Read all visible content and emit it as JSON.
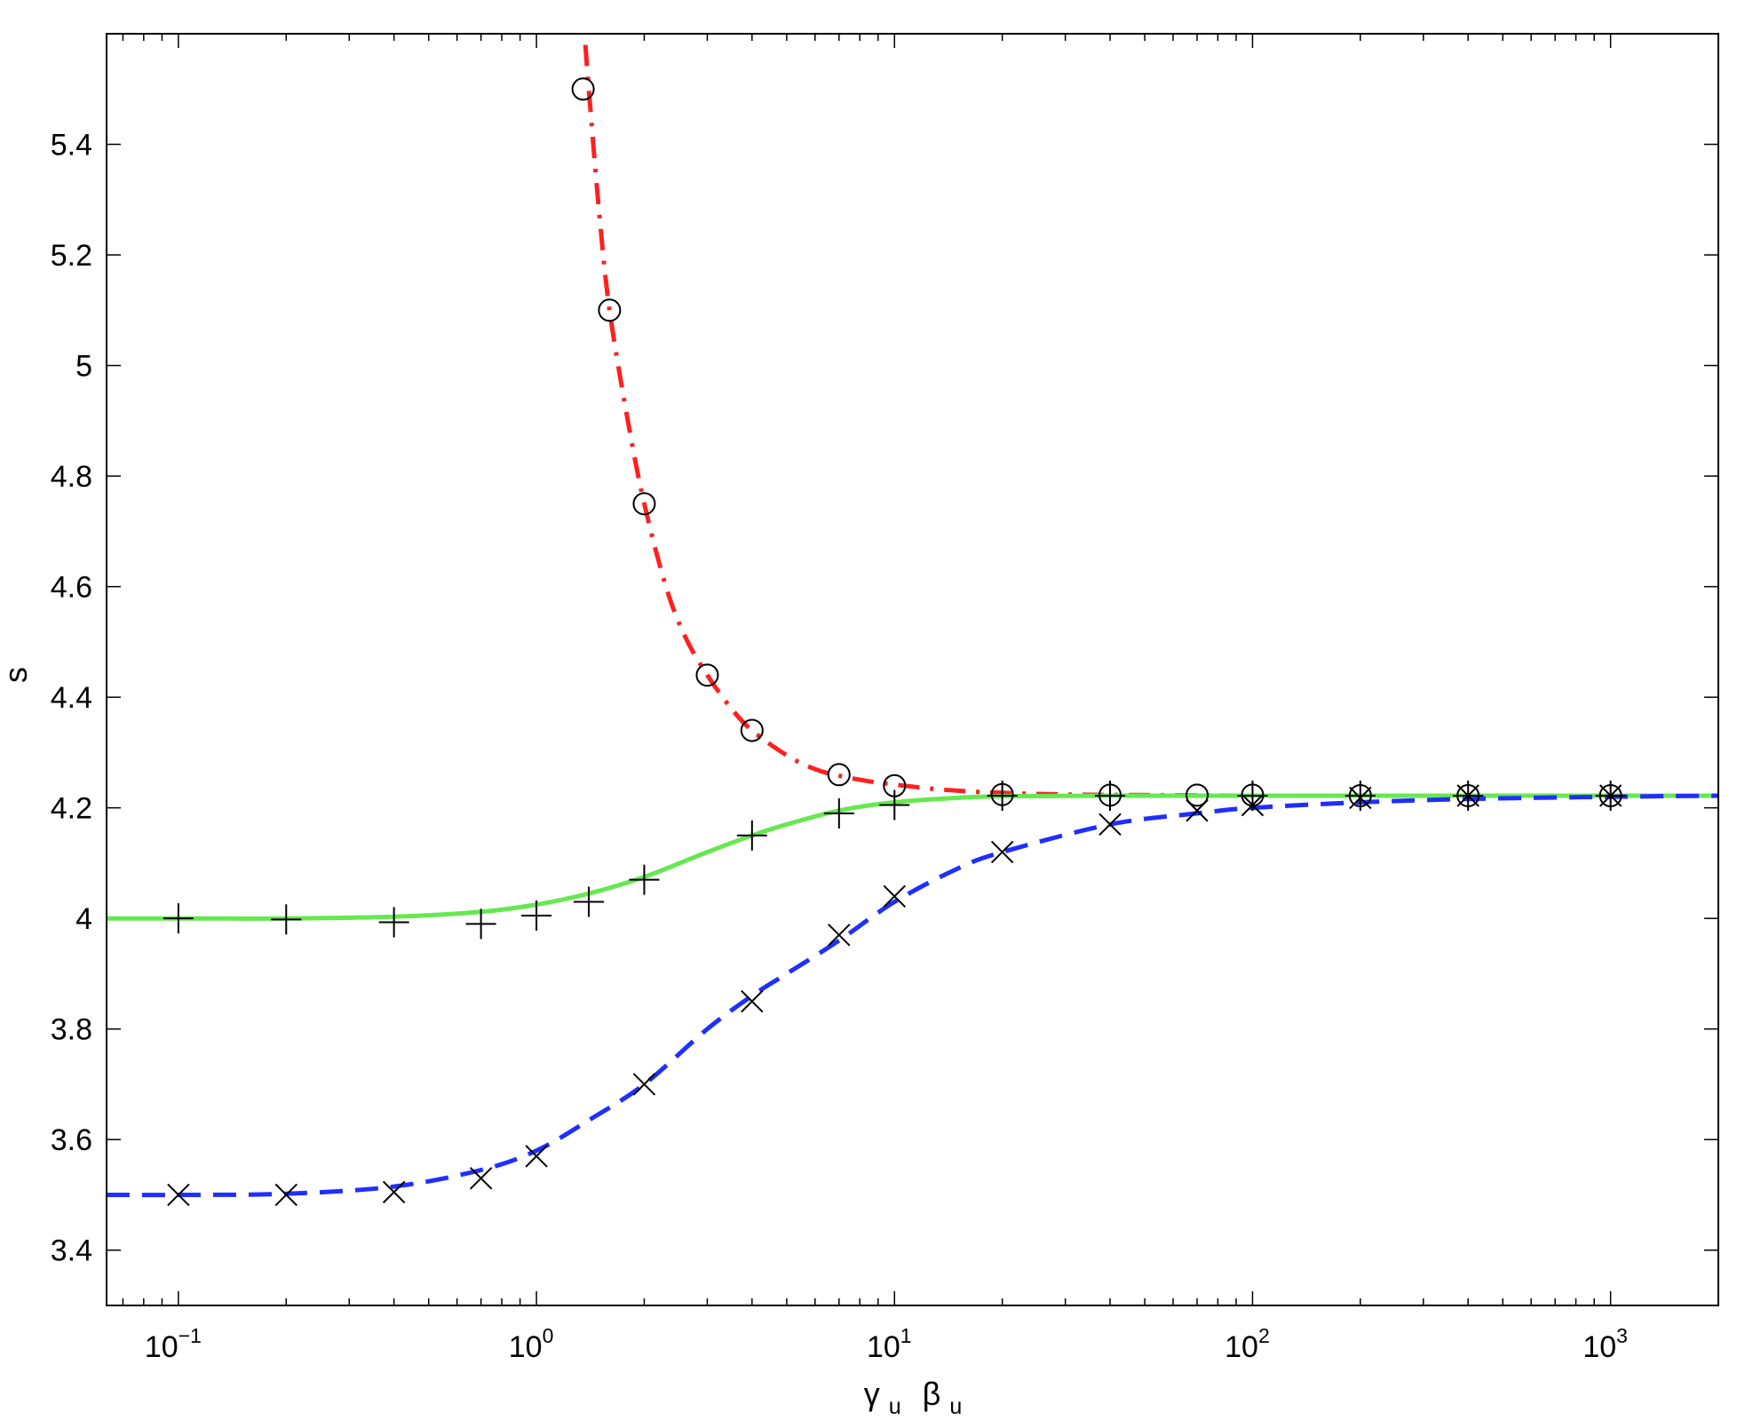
{
  "chart_data": {
    "type": "line",
    "xlabel": {
      "base1": "γ",
      "sub1": "u",
      "base2": "β",
      "sub2": "u"
    },
    "ylabel": "s",
    "xscale": "log",
    "xlim": [
      0.063,
      2000
    ],
    "ylim": [
      3.3,
      5.6
    ],
    "grid": false,
    "x_ticks": [
      {
        "value": 0.1,
        "base": "10",
        "exp": "−1"
      },
      {
        "value": 1,
        "base": "10",
        "exp": "0"
      },
      {
        "value": 10,
        "base": "10",
        "exp": "1"
      },
      {
        "value": 100,
        "base": "10",
        "exp": "2"
      },
      {
        "value": 1000,
        "base": "10",
        "exp": "3"
      }
    ],
    "y_ticks": [
      "3.4",
      "3.6",
      "3.8",
      "4",
      "4.2",
      "4.4",
      "4.6",
      "4.8",
      "5",
      "5.2",
      "5.4"
    ],
    "series": [
      {
        "color": "#ff2020",
        "style": "dash-dot",
        "x": [
          1.37,
          1.4,
          1.5,
          1.6,
          1.8,
          2.0,
          2.3,
          2.6,
          3.0,
          3.5,
          4.0,
          5.0,
          6.0,
          7.0,
          8.5,
          10,
          13,
          16,
          20,
          30,
          50,
          100,
          200,
          500,
          1000,
          2000
        ],
        "values": [
          5.58,
          5.5,
          5.27,
          5.1,
          4.9,
          4.75,
          4.6,
          4.51,
          4.44,
          4.38,
          4.34,
          4.295,
          4.27,
          4.258,
          4.248,
          4.242,
          4.234,
          4.23,
          4.227,
          4.224,
          4.223,
          4.222,
          4.222,
          4.222,
          4.222,
          4.222
        ]
      },
      {
        "color": "#66e850",
        "style": "solid",
        "x": [
          0.063,
          0.1,
          0.2,
          0.4,
          0.7,
          1.0,
          1.4,
          2.0,
          3.0,
          4.0,
          5.0,
          7.0,
          10,
          15,
          20,
          40,
          100,
          200,
          500,
          1000,
          2000
        ],
        "values": [
          4.0,
          4.0,
          4.0,
          4.003,
          4.012,
          4.025,
          4.045,
          4.075,
          4.12,
          4.15,
          4.17,
          4.195,
          4.21,
          4.218,
          4.221,
          4.222,
          4.222,
          4.222,
          4.222,
          4.222,
          4.222
        ]
      },
      {
        "color": "#1f2fff",
        "style": "dashed",
        "x": [
          0.063,
          0.1,
          0.2,
          0.4,
          0.7,
          1.0,
          1.4,
          2.0,
          3.0,
          4.0,
          5.0,
          7.0,
          10,
          15,
          20,
          40,
          70,
          100,
          200,
          400,
          1000,
          2000
        ],
        "values": [
          3.5,
          3.5,
          3.502,
          3.515,
          3.545,
          3.58,
          3.635,
          3.7,
          3.8,
          3.86,
          3.9,
          3.96,
          4.03,
          4.09,
          4.12,
          4.17,
          4.19,
          4.2,
          4.21,
          4.216,
          4.22,
          4.222
        ]
      }
    ],
    "markers": [
      {
        "symbol": "circle",
        "points": [
          [
            1.35,
            5.5
          ],
          [
            1.6,
            5.1
          ],
          [
            2.0,
            4.75
          ],
          [
            3.0,
            4.44
          ],
          [
            4.0,
            4.34
          ],
          [
            7.0,
            4.26
          ],
          [
            10,
            4.24
          ],
          [
            20,
            4.224
          ],
          [
            40,
            4.223
          ],
          [
            70,
            4.223
          ],
          [
            100,
            4.223
          ],
          [
            200,
            4.222
          ],
          [
            400,
            4.222
          ],
          [
            1000,
            4.222
          ]
        ]
      },
      {
        "symbol": "plus",
        "points": [
          [
            0.1,
            4.0
          ],
          [
            0.2,
            3.998
          ],
          [
            0.4,
            3.993
          ],
          [
            0.7,
            3.99
          ],
          [
            1.0,
            4.005
          ],
          [
            1.4,
            4.03
          ],
          [
            2.0,
            4.07
          ],
          [
            4.0,
            4.15
          ],
          [
            7.0,
            4.19
          ],
          [
            10,
            4.205
          ],
          [
            20,
            4.222
          ],
          [
            40,
            4.222
          ],
          [
            100,
            4.222
          ],
          [
            200,
            4.222
          ],
          [
            400,
            4.222
          ],
          [
            1000,
            4.222
          ]
        ]
      },
      {
        "symbol": "cross",
        "points": [
          [
            0.1,
            3.5
          ],
          [
            0.2,
            3.5
          ],
          [
            0.4,
            3.505
          ],
          [
            0.7,
            3.53
          ],
          [
            1.0,
            3.57
          ],
          [
            2.0,
            3.7
          ],
          [
            4.0,
            3.85
          ],
          [
            7.0,
            3.97
          ],
          [
            10,
            4.04
          ],
          [
            20,
            4.12
          ],
          [
            40,
            4.17
          ],
          [
            70,
            4.195
          ],
          [
            100,
            4.205
          ],
          [
            200,
            4.218
          ],
          [
            400,
            4.222
          ],
          [
            1000,
            4.222
          ]
        ]
      }
    ]
  }
}
